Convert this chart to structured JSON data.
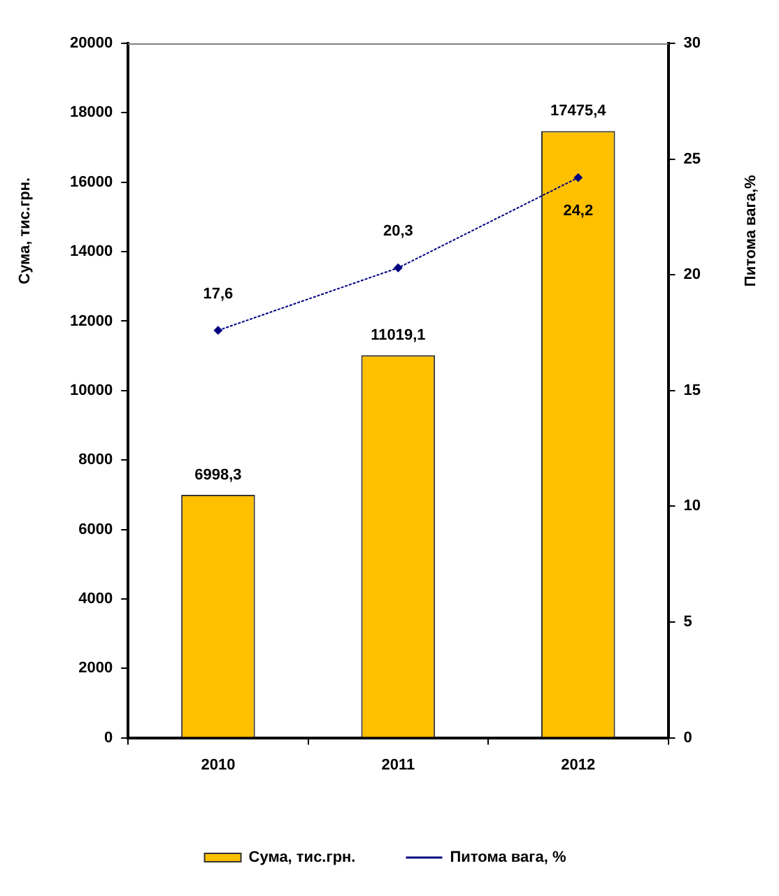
{
  "chart_data": {
    "type": "bar",
    "categories": [
      "2010",
      "2011",
      "2012"
    ],
    "series": [
      {
        "name": "Сума, тис.грн.",
        "color": "#ffc000",
        "values": [
          6998.3,
          11019.1,
          17475.4
        ],
        "value_labels": [
          "6998,3",
          "11019,1",
          "17475,4"
        ]
      },
      {
        "name": "Питома вага, %",
        "type": "line",
        "axis": "y2",
        "color": "#000080",
        "values": [
          17.6,
          20.3,
          24.2
        ],
        "value_labels": [
          "17,6",
          "20,3",
          "24,2"
        ]
      }
    ],
    "ylabel": "Сума, тис.грн.",
    "y2label": "Питома вага,%",
    "ylim": [
      0,
      20000
    ],
    "yticks": [
      0,
      2000,
      4000,
      6000,
      8000,
      10000,
      12000,
      14000,
      16000,
      18000,
      20000
    ],
    "y2lim": [
      0,
      30
    ],
    "y2ticks": [
      0,
      5,
      10,
      15,
      20,
      25,
      30
    ],
    "marker": "diamond",
    "line_style": "dotted",
    "grid": false,
    "legend": "bottom"
  }
}
